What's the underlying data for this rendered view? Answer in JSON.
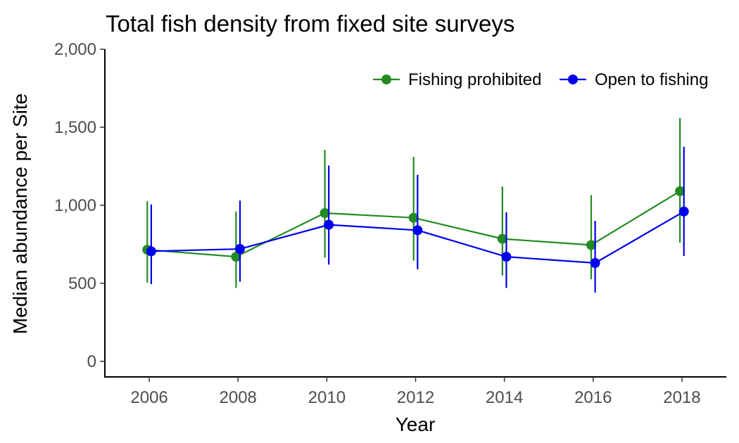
{
  "chart_data": {
    "type": "line",
    "title": "Total fish density from fixed site surveys",
    "xlabel": "Year",
    "ylabel": "Median abundance per Site",
    "xlim": [
      2005,
      2019
    ],
    "ylim": [
      -100,
      2000
    ],
    "x_ticks": [
      2006,
      2008,
      2010,
      2012,
      2014,
      2016,
      2018
    ],
    "x_tick_labels": [
      "2006",
      "2008",
      "2010",
      "2012",
      "2014",
      "2016",
      "2018"
    ],
    "y_ticks": [
      0,
      500,
      1000,
      1500,
      2000
    ],
    "y_tick_labels": [
      "0",
      "500",
      "1,000",
      "1,500",
      "2,000"
    ],
    "grid": false,
    "legend_position": "top-right",
    "series": [
      {
        "name": "Fishing prohibited",
        "color": "#228B22",
        "x": [
          2006,
          2008,
          2010,
          2012,
          2014,
          2016,
          2018
        ],
        "values": [
          715,
          670,
          950,
          920,
          785,
          745,
          1090
        ],
        "lower": [
          505,
          470,
          665,
          645,
          550,
          525,
          760
        ],
        "upper": [
          1025,
          960,
          1355,
          1310,
          1120,
          1065,
          1560
        ]
      },
      {
        "name": "Open to fishing",
        "color": "#0000EE",
        "x": [
          2006,
          2008,
          2010,
          2012,
          2014,
          2016,
          2018
        ],
        "values": [
          705,
          720,
          875,
          840,
          670,
          630,
          960
        ],
        "lower": [
          495,
          510,
          620,
          590,
          470,
          440,
          675
        ],
        "upper": [
          1005,
          1030,
          1255,
          1195,
          955,
          900,
          1375
        ]
      }
    ]
  }
}
